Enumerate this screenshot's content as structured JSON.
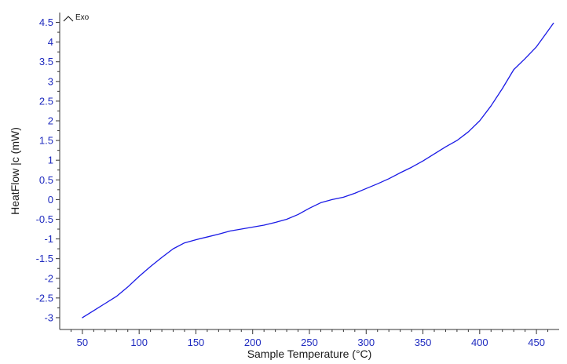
{
  "chart_data": {
    "type": "line",
    "title": "",
    "xlabel": "Sample Temperature (°C)",
    "ylabel": "HeatFlow |c (mW)",
    "annotation": "Exo",
    "xlim": [
      30,
      470
    ],
    "ylim": [
      -3.3,
      4.75
    ],
    "x_ticks": [
      50,
      100,
      150,
      200,
      250,
      300,
      350,
      400,
      450
    ],
    "x_tick_labels": [
      "50",
      "100",
      "150",
      "200",
      "250",
      "300",
      "350",
      "400",
      "450"
    ],
    "y_ticks": [
      4.5,
      4,
      3.5,
      3,
      2.5,
      2,
      1.5,
      1,
      0.5,
      0,
      -0.5,
      -1,
      -1.5,
      -2,
      -2.5,
      -3
    ],
    "y_tick_labels": [
      "4.5",
      "4",
      "3.5",
      "3",
      "2.5",
      "2",
      "1.5",
      "1",
      "0.5",
      "0",
      "-0.5",
      "-1",
      "-1.5",
      "-2",
      "-2.5",
      "-3"
    ],
    "grid": false,
    "series": [
      {
        "color": "#1a1ae6",
        "x": [
          50,
          60,
          70,
          80,
          90,
          100,
          110,
          120,
          130,
          140,
          150,
          160,
          170,
          180,
          190,
          200,
          210,
          220,
          230,
          240,
          250,
          260,
          270,
          280,
          290,
          300,
          310,
          320,
          330,
          340,
          350,
          360,
          370,
          380,
          390,
          400,
          410,
          420,
          430,
          440,
          450,
          460,
          465
        ],
        "y": [
          -3.0,
          -2.82,
          -2.64,
          -2.46,
          -2.22,
          -1.95,
          -1.7,
          -1.47,
          -1.25,
          -1.1,
          -1.02,
          -0.95,
          -0.88,
          -0.8,
          -0.75,
          -0.7,
          -0.65,
          -0.58,
          -0.5,
          -0.38,
          -0.22,
          -0.08,
          0.0,
          0.06,
          0.16,
          0.28,
          0.4,
          0.53,
          0.68,
          0.82,
          0.98,
          1.16,
          1.34,
          1.5,
          1.72,
          2.0,
          2.38,
          2.82,
          3.3,
          3.58,
          3.88,
          4.28,
          4.48
        ]
      }
    ]
  }
}
